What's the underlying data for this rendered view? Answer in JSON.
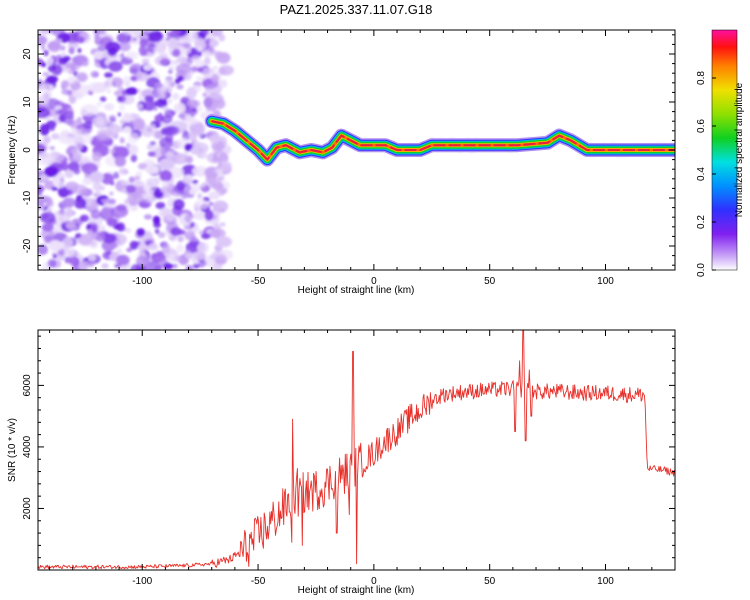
{
  "figure_title": "PAZ1.2025.337.11.07.G18",
  "colors": {
    "snr_line": "#e8302a",
    "frame": "#000000",
    "noise": "#7b2cf0",
    "track_core": "#e82040"
  },
  "chart_data": [
    {
      "type": "heatmap",
      "title": "PAZ1.2025.337.11.07.G18",
      "xlabel": "Height of straight line (km)",
      "ylabel": "Frequency (Hz)",
      "xlim": [
        -145,
        130
      ],
      "ylim": [
        -25,
        25
      ],
      "xticks": [
        -100,
        -50,
        0,
        50,
        100
      ],
      "xtick_labels": [
        "-100",
        "-50",
        "0",
        "50",
        "100"
      ],
      "yticks": [
        -20,
        -10,
        0,
        10,
        20
      ],
      "ytick_labels": [
        "-20",
        "-10",
        "0",
        "10",
        "20"
      ],
      "noise_region_x": [
        -145,
        -68
      ],
      "frequency_track": [
        {
          "x": -70,
          "y": 6
        },
        {
          "x": -65,
          "y": 5.5
        },
        {
          "x": -60,
          "y": 4
        },
        {
          "x": -55,
          "y": 2
        },
        {
          "x": -50,
          "y": 0
        },
        {
          "x": -46,
          "y": -2
        },
        {
          "x": -42,
          "y": 0.5
        },
        {
          "x": -38,
          "y": 1
        },
        {
          "x": -32,
          "y": -0.5
        },
        {
          "x": -27,
          "y": 0
        },
        {
          "x": -22,
          "y": -0.5
        },
        {
          "x": -18,
          "y": 0.5
        },
        {
          "x": -14,
          "y": 3
        },
        {
          "x": -10,
          "y": 2
        },
        {
          "x": -6,
          "y": 1
        },
        {
          "x": 0,
          "y": 1
        },
        {
          "x": 5,
          "y": 1
        },
        {
          "x": 10,
          "y": 0
        },
        {
          "x": 20,
          "y": 0
        },
        {
          "x": 25,
          "y": 1
        },
        {
          "x": 40,
          "y": 1
        },
        {
          "x": 58,
          "y": 1
        },
        {
          "x": 62,
          "y": 1
        },
        {
          "x": 75,
          "y": 1.5
        },
        {
          "x": 80,
          "y": 3
        },
        {
          "x": 85,
          "y": 2
        },
        {
          "x": 92,
          "y": 0
        },
        {
          "x": 130,
          "y": 0
        }
      ],
      "colorbar": {
        "label": "Normalized spectral amplitude",
        "range": [
          0,
          1
        ],
        "ticks": [
          0.0,
          0.2,
          0.4,
          0.6,
          0.8
        ],
        "tick_labels": [
          "0.0",
          "0.2",
          "0.4",
          "0.6",
          "0.8"
        ],
        "colormap": "rainbow (white-lavender at 0, violet, blue, cyan, green, yellow, orange, red, magenta at 1)"
      }
    },
    {
      "type": "line",
      "xlabel": "Height of straight line (km)",
      "ylabel": "SNR (10 * v/v)",
      "xlim": [
        -145,
        130
      ],
      "ylim": [
        0,
        7800
      ],
      "xticks": [
        -100,
        -50,
        0,
        50,
        100
      ],
      "xtick_labels": [
        "-100",
        "-50",
        "0",
        "50",
        "100"
      ],
      "yticks": [
        2000,
        4000,
        6000
      ],
      "ytick_labels": [
        "2000",
        "4000",
        "6000"
      ],
      "series": [
        {
          "name": "SNR",
          "envelope": [
            [
              -145,
              100
            ],
            [
              -100,
              100
            ],
            [
              -80,
              150
            ],
            [
              -70,
              200
            ],
            [
              -62,
              350
            ],
            [
              -55,
              700
            ],
            [
              -50,
              1100
            ],
            [
              -45,
              1500
            ],
            [
              -40,
              1900
            ],
            [
              -35,
              2300
            ],
            [
              -30,
              2500
            ],
            [
              -25,
              2600
            ],
            [
              -20,
              2800
            ],
            [
              -15,
              3100
            ],
            [
              -10,
              3200
            ],
            [
              -5,
              3500
            ],
            [
              0,
              3800
            ],
            [
              5,
              4200
            ],
            [
              10,
              4500
            ],
            [
              15,
              4900
            ],
            [
              20,
              5200
            ],
            [
              25,
              5500
            ],
            [
              30,
              5700
            ],
            [
              40,
              5800
            ],
            [
              50,
              5850
            ],
            [
              60,
              5900
            ],
            [
              70,
              5800
            ],
            [
              80,
              5800
            ],
            [
              90,
              5750
            ],
            [
              100,
              5750
            ],
            [
              110,
              5700
            ],
            [
              117,
              5700
            ],
            [
              118,
              3300
            ],
            [
              125,
              3250
            ],
            [
              130,
              3150
            ]
          ],
          "spikes": [
            [
              -35,
              4900
            ],
            [
              -35.5,
              900
            ],
            [
              -33,
              3300
            ],
            [
              -31,
              800
            ],
            [
              -16,
              1200
            ],
            [
              -14,
              3400
            ],
            [
              -9,
              7100
            ],
            [
              -7.5,
              200
            ],
            [
              -10.5,
              1800
            ],
            [
              64.5,
              7800
            ],
            [
              65.5,
              4200
            ],
            [
              63,
              6800
            ],
            [
              61,
              4500
            ],
            [
              67,
              6500
            ],
            [
              68,
              5000
            ]
          ]
        }
      ]
    }
  ]
}
